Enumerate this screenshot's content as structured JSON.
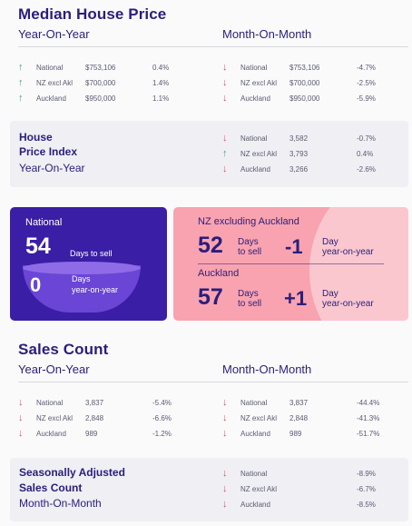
{
  "median": {
    "title": "Median House Price",
    "yoy_label": "Year-On-Year",
    "mom_label": "Month-On-Month",
    "yoy_rows": [
      {
        "dir": "up",
        "label": "National",
        "value": "$753,106",
        "pct": "0.4%"
      },
      {
        "dir": "up",
        "label": "NZ excl Akl",
        "value": "$700,000",
        "pct": "1.4%"
      },
      {
        "dir": "up",
        "label": "Auckland",
        "value": "$950,000",
        "pct": "1.1%"
      }
    ],
    "mom_rows": [
      {
        "dir": "down",
        "label": "National",
        "value": "$753,106",
        "pct": "-4.7%"
      },
      {
        "dir": "down",
        "label": "NZ excl Akl",
        "value": "$700,000",
        "pct": "-2.5%"
      },
      {
        "dir": "down",
        "label": "Auckland",
        "value": "$950,000",
        "pct": "-5.9%"
      }
    ]
  },
  "hpi": {
    "title_line1": "House",
    "title_line2": "Price Index",
    "subtitle": "Year-On-Year",
    "rows": [
      {
        "dir": "down",
        "label": "National",
        "value": "3,582",
        "pct": "-0.7%"
      },
      {
        "dir": "up",
        "label": "NZ excl Akl",
        "value": "3,793",
        "pct": "0.4%"
      },
      {
        "dir": "down",
        "label": "Auckland",
        "value": "3,266",
        "pct": "-2.6%"
      }
    ]
  },
  "national_card": {
    "heading": "National",
    "days": "54",
    "days_label": "Days to sell",
    "change": "0",
    "change_label_1": "Days",
    "change_label_2": "year-on-year"
  },
  "nz_card": {
    "heading": "NZ excluding Auckland",
    "days": "52",
    "days_label_1": "Days",
    "days_label_2": "to sell",
    "change": "-1",
    "change_label_1": "Day",
    "change_label_2": "year-on-year",
    "heading2": "Auckland",
    "days2": "57",
    "days2_label_1": "Days",
    "days2_label_2": "to sell",
    "change2": "+1",
    "change2_label_1": "Day",
    "change2_label_2": "year-on-year"
  },
  "sales": {
    "title": "Sales Count",
    "yoy_label": "Year-On-Year",
    "mom_label": "Month-On-Month",
    "yoy_rows": [
      {
        "dir": "down",
        "label": "National",
        "value": "3,837",
        "pct": "-5.4%"
      },
      {
        "dir": "down",
        "label": "NZ excl Akl",
        "value": "2,848",
        "pct": "-6.6%"
      },
      {
        "dir": "down",
        "label": "Auckland",
        "value": "989",
        "pct": "-1.2%"
      }
    ],
    "mom_rows": [
      {
        "dir": "down",
        "label": "National",
        "value": "3,837",
        "pct": "-44.4%"
      },
      {
        "dir": "down",
        "label": "NZ excl Akl",
        "value": "2,848",
        "pct": "-41.3%"
      },
      {
        "dir": "down",
        "label": "Auckland",
        "value": "989",
        "pct": "-51.7%"
      }
    ]
  },
  "seasonal": {
    "title_line1": "Seasonally Adjusted",
    "title_line2": "Sales Count",
    "subtitle": "Month-On-Month",
    "rows": [
      {
        "dir": "down",
        "label": "National",
        "value": "",
        "pct": "-8.9%"
      },
      {
        "dir": "down",
        "label": "NZ excl Akl",
        "value": "",
        "pct": "-6.7%"
      },
      {
        "dir": "down",
        "label": "Auckland",
        "value": "",
        "pct": "-8.5%"
      }
    ]
  },
  "colors": {
    "up": "#3fa66a",
    "down": "#e0505a",
    "navy": "#2a1e7a",
    "purple_card": "#3a1ea6",
    "pink_card": "#f9a3b0"
  },
  "icons": {
    "up": "arrow-up-icon",
    "down": "arrow-down-icon"
  }
}
